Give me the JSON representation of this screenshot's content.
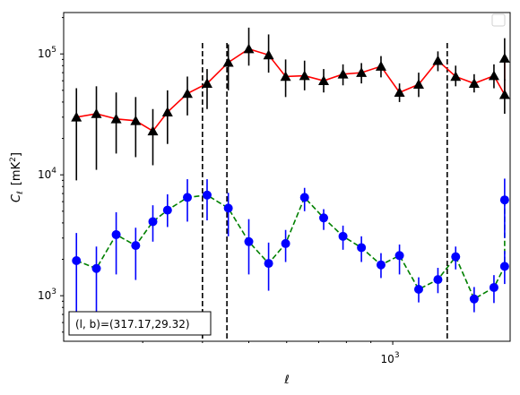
{
  "chart_data": {
    "type": "scatter",
    "title": "",
    "xlabel": "ℓ",
    "ylabel_main": "C",
    "ylabel_sub": "ℓ",
    "ylabel_unit": "[mK",
    "ylabel_unit_sup": "2",
    "ylabel_unit_close": "]",
    "xscale": "log",
    "yscale": "log",
    "xlim": [
      205,
      1760
    ],
    "ylim": [
      420,
      220000
    ],
    "x_ticks": [
      {
        "value": 1000,
        "base": "10",
        "exp": "3"
      }
    ],
    "y_ticks": [
      {
        "value": 1000,
        "base": "10",
        "exp": "3"
      },
      {
        "value": 10000,
        "base": "10",
        "exp": "4"
      },
      {
        "value": 100000,
        "base": "10",
        "exp": "5"
      }
    ],
    "legend": {
      "placement": "top-right",
      "entries": []
    },
    "annotation": "(l, b)=(317.17,29.32)",
    "vlines": [
      400,
      450,
      1300
    ],
    "series": [
      {
        "marker": "triangle",
        "color": "#000000",
        "line_color": "#ff0000",
        "line_style": "solid",
        "x": [
          218,
          240,
          264,
          290,
          315,
          338,
          372,
          409,
          453,
          500,
          550,
          597,
          654,
          717,
          787,
          860,
          945,
          1033,
          1133,
          1243,
          1354,
          1480,
          1628,
          1714
        ],
        "y": [
          30000,
          32000,
          29000,
          28000,
          23000,
          33000,
          47000,
          57000,
          85000,
          110000,
          98000,
          65000,
          66000,
          60000,
          68000,
          70000,
          79000,
          48000,
          56000,
          88000,
          65000,
          57000,
          66000,
          46000
        ],
        "y_err_low": [
          9000,
          11000,
          15000,
          14000,
          12000,
          18000,
          31000,
          35000,
          50000,
          80000,
          70000,
          44000,
          50000,
          48000,
          55000,
          57000,
          64000,
          40000,
          44000,
          72000,
          54000,
          48000,
          52000,
          32000
        ],
        "y_err_high": [
          52000,
          54000,
          48000,
          44000,
          35000,
          50000,
          65000,
          75000,
          120000,
          165000,
          145000,
          90000,
          88000,
          75000,
          82000,
          84000,
          96000,
          57000,
          70000,
          105000,
          80000,
          68000,
          82000,
          62000
        ]
      },
      {
        "marker": "circle",
        "color": "#0000ff",
        "line_color": "#008000",
        "line_style": "dashed",
        "x": [
          218,
          240,
          264,
          290,
          315,
          338,
          372,
          409,
          453,
          500,
          550,
          597,
          654,
          717,
          787,
          860,
          945,
          1033,
          1133,
          1243,
          1354,
          1480,
          1628,
          1714
        ],
        "y": [
          1950,
          1680,
          3200,
          2600,
          4100,
          5100,
          6500,
          6800,
          5300,
          2800,
          1850,
          2700,
          6500,
          4400,
          3100,
          2500,
          1800,
          2150,
          1130,
          1360,
          2100,
          940,
          1170,
          1750
        ],
        "y_err_low": [
          700,
          520,
          1500,
          1350,
          2800,
          3700,
          4100,
          4200,
          3100,
          1500,
          1100,
          1900,
          5000,
          3500,
          2400,
          1900,
          1400,
          1500,
          880,
          1050,
          1650,
          730,
          870,
          1250
        ],
        "y_err_high": [
          3300,
          2550,
          4900,
          3650,
          5600,
          6900,
          9200,
          9200,
          7100,
          4300,
          2750,
          3500,
          7800,
          5200,
          3800,
          3100,
          2250,
          2650,
          1420,
          1700,
          2550,
          1180,
          1480,
          2350
        ]
      }
    ],
    "extra_point": {
      "x": 1714,
      "y": 6200,
      "y_err_low": 3000,
      "y_err_high": 9300,
      "top_y": 92000,
      "top_err_low": 60000,
      "top_err_high": 135000
    }
  }
}
